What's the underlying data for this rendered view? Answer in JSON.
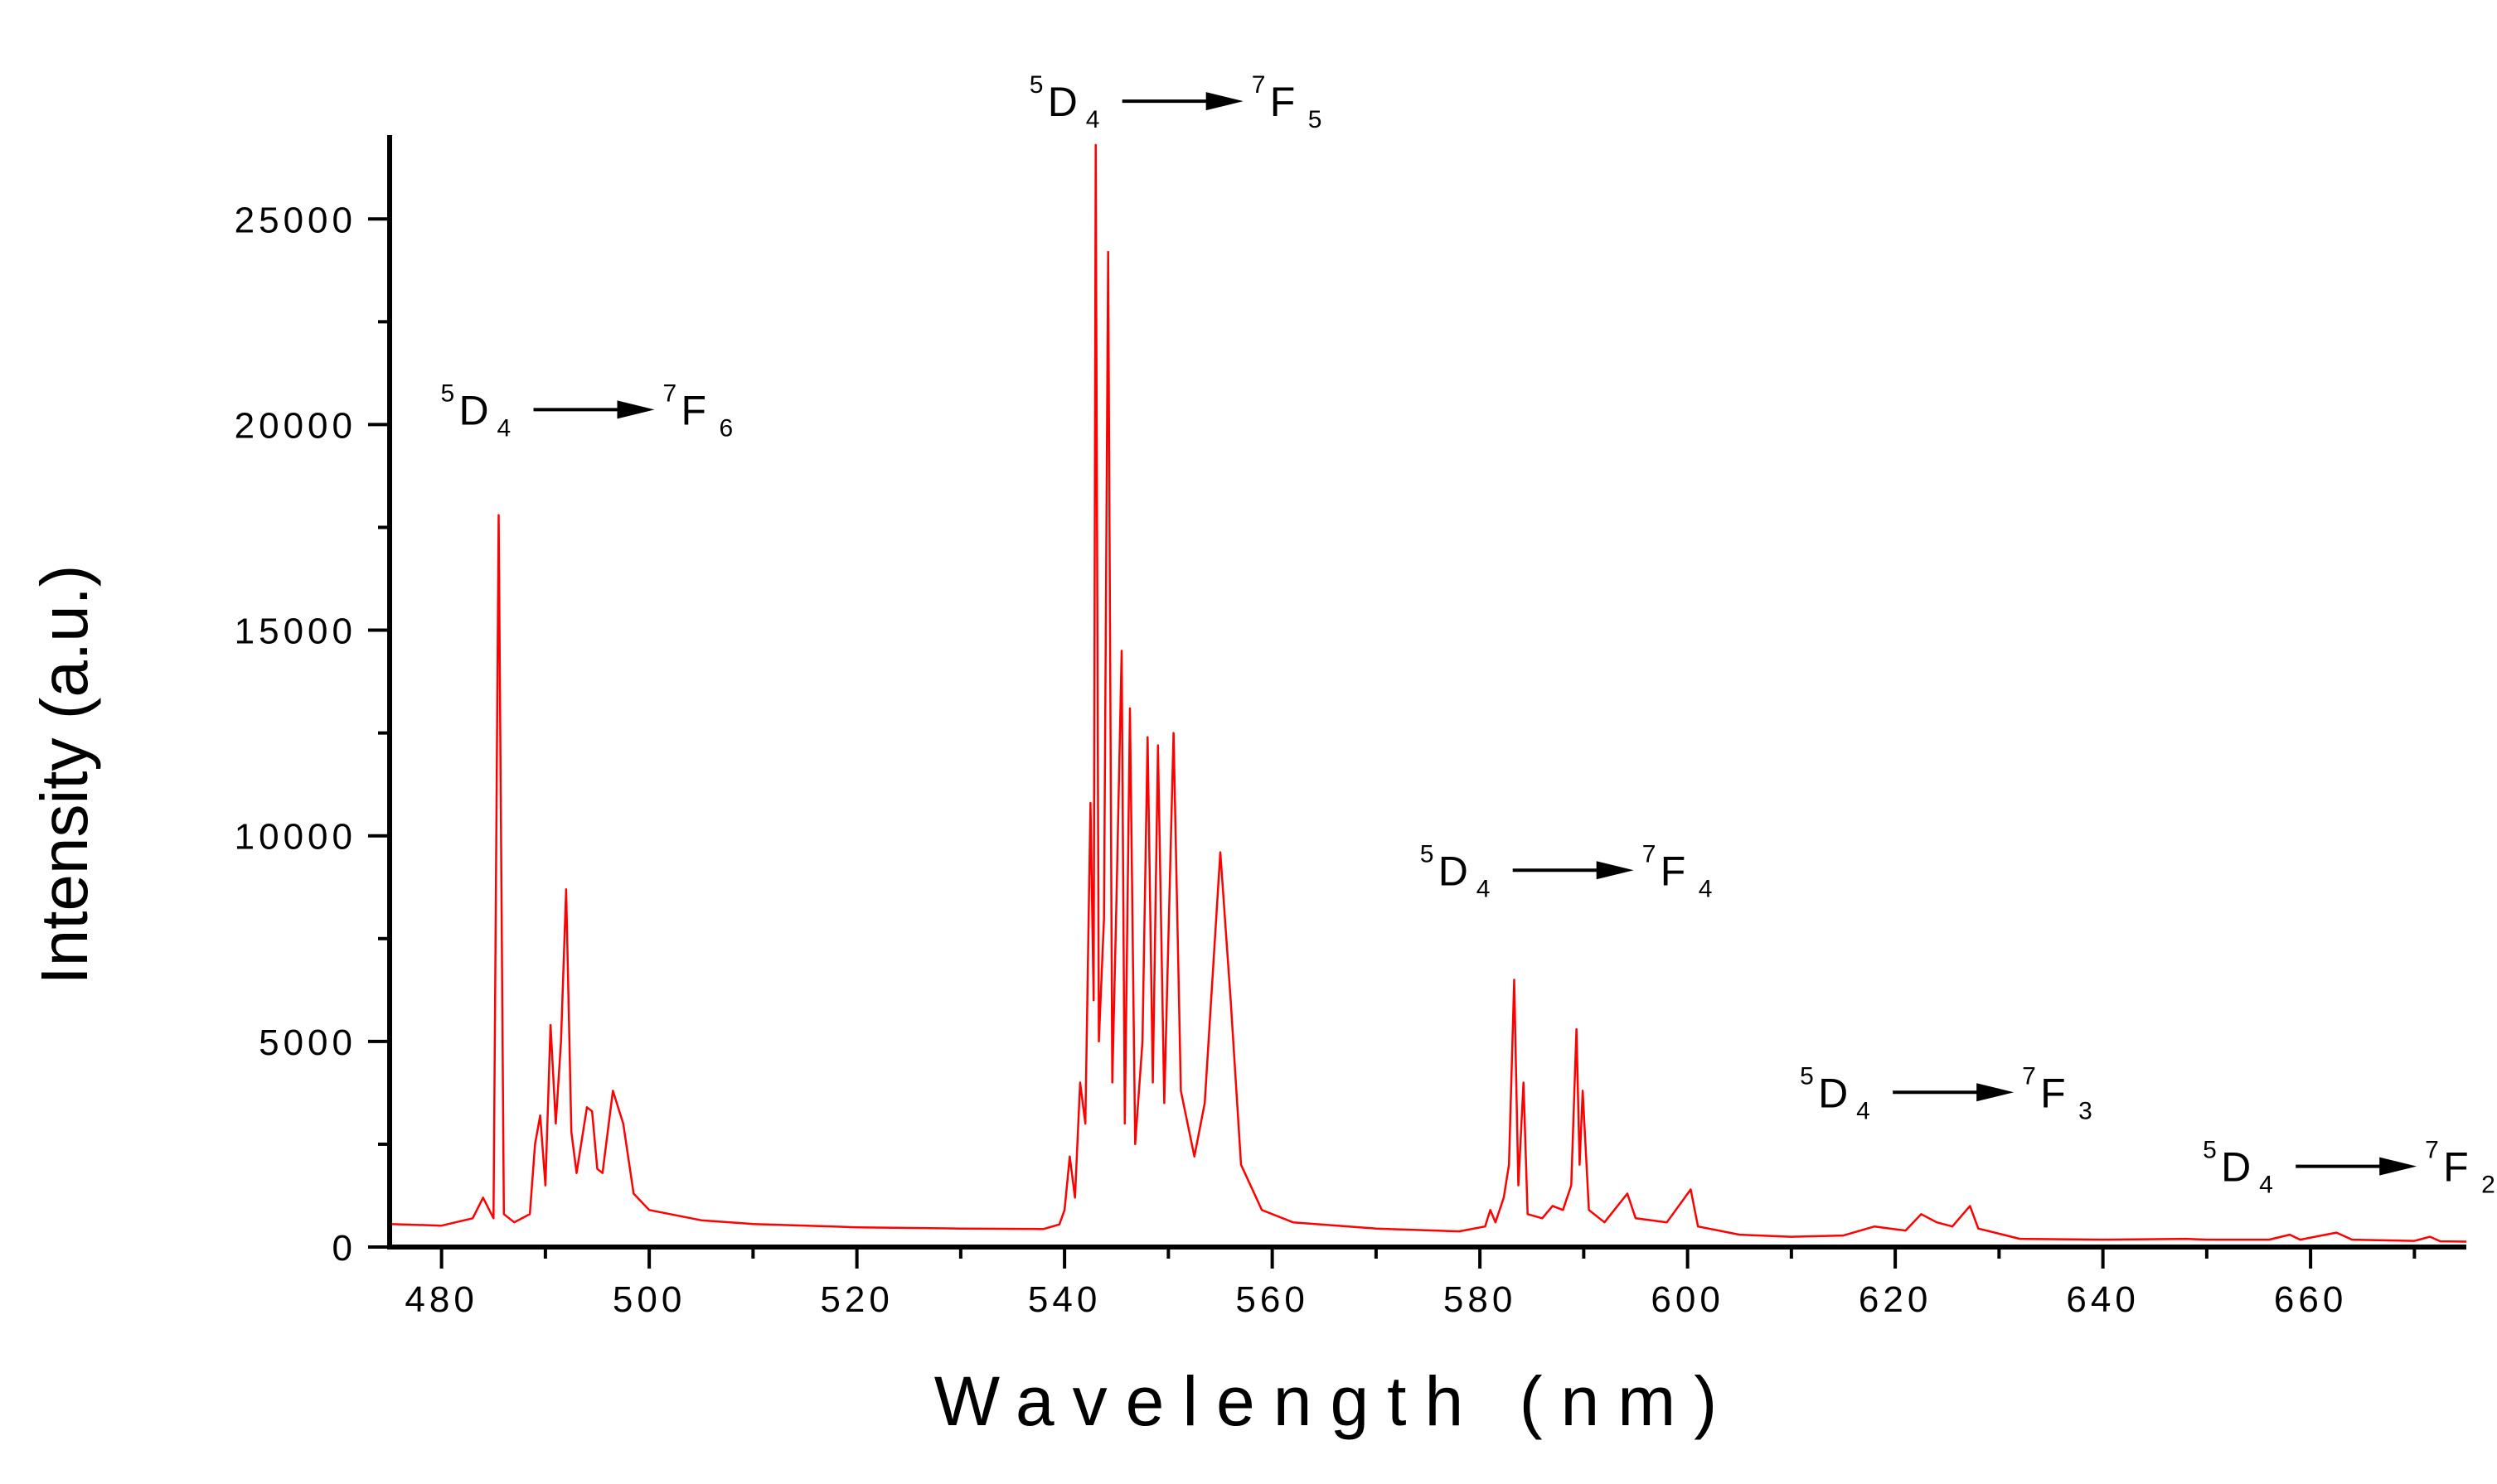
{
  "chart_data": {
    "type": "line",
    "title": "",
    "xlabel": "Wavelength (nm)",
    "ylabel": "Intensity (a.u.)",
    "xlim": [
      475,
      675
    ],
    "ylim": [
      0,
      27000
    ],
    "x_ticks": [
      480,
      500,
      520,
      540,
      560,
      580,
      600,
      620,
      640,
      660
    ],
    "y_ticks": [
      0,
      5000,
      10000,
      15000,
      20000,
      25000
    ],
    "x_tick_labels": [
      "480",
      "500",
      "520",
      "540",
      "560",
      "580",
      "600",
      "620",
      "640",
      "660"
    ],
    "y_tick_labels": [
      "0",
      "5000",
      "10000",
      "15000",
      "20000",
      "25000"
    ],
    "grid": false,
    "legend": "none",
    "line_color": "#ff0000",
    "baseline": [
      [
        475,
        560
      ],
      [
        480,
        520
      ],
      [
        483,
        700
      ],
      [
        484,
        1200
      ],
      [
        485,
        700
      ],
      [
        485.5,
        17800
      ],
      [
        486,
        800
      ],
      [
        487,
        600
      ],
      [
        488.5,
        800
      ],
      [
        489,
        2500
      ],
      [
        489.5,
        3200
      ],
      [
        490,
        1500
      ],
      [
        490.5,
        5400
      ],
      [
        491,
        3000
      ],
      [
        491.5,
        5000
      ],
      [
        492,
        8700
      ],
      [
        492.5,
        2800
      ],
      [
        493,
        1800
      ],
      [
        494,
        3400
      ],
      [
        494.5,
        3300
      ],
      [
        495,
        1900
      ],
      [
        495.5,
        1800
      ],
      [
        496.5,
        3800
      ],
      [
        497.5,
        3000
      ],
      [
        498.5,
        1300
      ],
      [
        500,
        900
      ],
      [
        505,
        650
      ],
      [
        510,
        560
      ],
      [
        520,
        480
      ],
      [
        530,
        450
      ],
      [
        538,
        440
      ],
      [
        539.5,
        550
      ],
      [
        540,
        900
      ],
      [
        540.5,
        2200
      ],
      [
        541,
        1200
      ],
      [
        541.5,
        4000
      ],
      [
        542,
        3000
      ],
      [
        542.5,
        10800
      ],
      [
        542.8,
        6000
      ],
      [
        543,
        26800
      ],
      [
        543.3,
        5000
      ],
      [
        543.8,
        8000
      ],
      [
        544.2,
        24200
      ],
      [
        544.6,
        4000
      ],
      [
        545,
        8500
      ],
      [
        545.5,
        14500
      ],
      [
        545.8,
        3000
      ],
      [
        546.3,
        13100
      ],
      [
        546.8,
        2500
      ],
      [
        547.5,
        5000
      ],
      [
        548,
        12400
      ],
      [
        548.5,
        4000
      ],
      [
        549,
        12200
      ],
      [
        549.6,
        3500
      ],
      [
        550.5,
        12500
      ],
      [
        551.2,
        3800
      ],
      [
        552.5,
        2200
      ],
      [
        553.5,
        3500
      ],
      [
        555,
        9600
      ],
      [
        556,
        6000
      ],
      [
        557,
        2000
      ],
      [
        559,
        900
      ],
      [
        562,
        600
      ],
      [
        570,
        450
      ],
      [
        578,
        380
      ],
      [
        580.5,
        500
      ],
      [
        581,
        900
      ],
      [
        581.5,
        600
      ],
      [
        582.3,
        1200
      ],
      [
        582.8,
        2000
      ],
      [
        583.3,
        6500
      ],
      [
        583.7,
        1500
      ],
      [
        584.2,
        4000
      ],
      [
        584.6,
        800
      ],
      [
        586,
        700
      ],
      [
        587,
        1000
      ],
      [
        588,
        900
      ],
      [
        588.8,
        1500
      ],
      [
        589.3,
        5300
      ],
      [
        589.6,
        2000
      ],
      [
        589.9,
        3800
      ],
      [
        590.5,
        900
      ],
      [
        592,
        600
      ],
      [
        594.2,
        1300
      ],
      [
        595,
        700
      ],
      [
        598,
        600
      ],
      [
        600.3,
        1400
      ],
      [
        601,
        500
      ],
      [
        605,
        300
      ],
      [
        610,
        250
      ],
      [
        615,
        280
      ],
      [
        618,
        500
      ],
      [
        619.5,
        450
      ],
      [
        621,
        400
      ],
      [
        622.5,
        800
      ],
      [
        624,
        600
      ],
      [
        625.5,
        500
      ],
      [
        627.2,
        1000
      ],
      [
        628,
        450
      ],
      [
        632,
        200
      ],
      [
        640,
        180
      ],
      [
        648,
        200
      ],
      [
        650,
        180
      ],
      [
        656,
        180
      ],
      [
        658,
        300
      ],
      [
        659,
        180
      ],
      [
        662.5,
        350
      ],
      [
        664,
        180
      ],
      [
        670,
        150
      ],
      [
        671.5,
        250
      ],
      [
        672.5,
        140
      ],
      [
        675,
        130
      ]
    ],
    "annotations": [
      {
        "lower": "5",
        "upper": "D",
        "sub": "4",
        "target_sup": "7",
        "target": "F",
        "target_sub": "6",
        "x": 485.5,
        "y": 20000
      },
      {
        "lower": "5",
        "upper": "D",
        "sub": "4",
        "target_sup": "7",
        "target": "F",
        "target_sub": "5",
        "x": 543,
        "y": 27500
      },
      {
        "lower": "5",
        "upper": "D",
        "sub": "4",
        "target_sup": "7",
        "target": "F",
        "target_sub": "4",
        "x": 583,
        "y": 8800
      },
      {
        "lower": "5",
        "upper": "D",
        "sub": "4",
        "target_sup": "7",
        "target": "F",
        "target_sub": "3",
        "x": 622,
        "y": 3400
      },
      {
        "lower": "5",
        "upper": "D",
        "sub": "4",
        "target_sup": "7",
        "target": "F",
        "target_sub": "2",
        "x": 662,
        "y": 1600
      }
    ]
  }
}
